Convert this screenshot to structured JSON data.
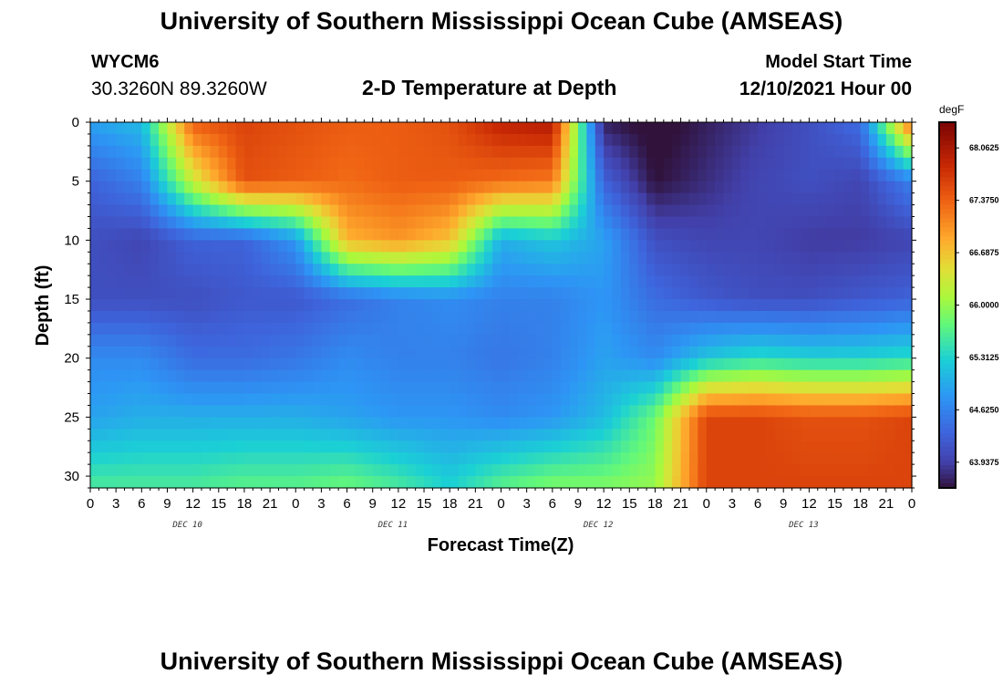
{
  "header": {
    "title": "University of Southern Mississippi Ocean Cube (AMSEAS)",
    "station": "WYCM6",
    "coords": "30.3260N  89.3260W",
    "subtitle": "2-D Temperature at Depth",
    "model_label": "Model Start Time",
    "model_time": "12/10/2021 Hour 00"
  },
  "footer": {
    "title": "University of Southern Mississippi Ocean Cube (AMSEAS)"
  },
  "chart_data": {
    "type": "heatmap",
    "title": "2-D Temperature at Depth",
    "xlabel": "Forecast Time(Z)",
    "ylabel": "Depth (ft)",
    "x_tick_labels": [
      "0",
      "3",
      "6",
      "9",
      "12",
      "15",
      "18",
      "21",
      "0",
      "3",
      "6",
      "9",
      "12",
      "15",
      "18",
      "21",
      "0",
      "3",
      "6",
      "9",
      "12",
      "15",
      "18",
      "21",
      "0",
      "3",
      "6",
      "9",
      "12",
      "15",
      "18",
      "21",
      "0"
    ],
    "date_labels": [
      {
        "label": "DEC 10",
        "hour": 12
      },
      {
        "label": "DEC 11",
        "hour": 36
      },
      {
        "label": "DEC 12",
        "hour": 60
      },
      {
        "label": "DEC 13",
        "hour": 84
      }
    ],
    "xlim_hours": [
      0,
      96
    ],
    "ylim_ft": [
      0,
      31
    ],
    "y_ticks": [
      0,
      5,
      10,
      15,
      20,
      25,
      30
    ],
    "colorbar": {
      "unit": "degF",
      "min": 63.6,
      "max": 68.4,
      "tick_values": [
        68.0625,
        67.375,
        66.6875,
        66.0,
        65.3125,
        64.625,
        63.9375
      ],
      "tick_labels": [
        "68.0625",
        "67.3750",
        "66.6875",
        "66.0000",
        "65.3125",
        "64.6250",
        "63.9375"
      ]
    },
    "hours": [
      0,
      6,
      12,
      18,
      24,
      30,
      36,
      42,
      48,
      54,
      60,
      66,
      72,
      78,
      84,
      90,
      96
    ],
    "depths_ft": [
      0,
      5,
      10,
      15,
      20,
      25,
      31
    ],
    "values": [
      [
        64.9,
        65.1,
        67.4,
        67.6,
        67.5,
        67.4,
        67.4,
        67.5,
        67.9,
        68.0,
        63.7,
        63.5,
        63.7,
        63.9,
        64.1,
        64.4,
        67.4
      ],
      [
        64.3,
        64.6,
        66.3,
        67.5,
        67.4,
        67.3,
        67.4,
        67.4,
        67.3,
        67.2,
        64.3,
        63.6,
        63.8,
        64.0,
        64.1,
        64.0,
        64.6
      ],
      [
        64.1,
        64.0,
        64.3,
        64.3,
        64.8,
        66.8,
        67.0,
        66.7,
        65.0,
        65.2,
        64.9,
        64.1,
        64.0,
        64.0,
        63.9,
        63.9,
        64.0
      ],
      [
        64.1,
        64.1,
        64.1,
        64.2,
        64.2,
        64.4,
        64.6,
        64.7,
        64.6,
        64.6,
        64.8,
        64.4,
        64.2,
        64.1,
        64.1,
        64.2,
        64.3
      ],
      [
        64.7,
        64.7,
        64.4,
        64.4,
        64.5,
        64.7,
        64.6,
        64.6,
        64.5,
        64.6,
        64.9,
        64.7,
        65.2,
        65.4,
        65.3,
        65.3,
        65.4
      ],
      [
        64.9,
        65.0,
        65.0,
        65.0,
        65.0,
        64.9,
        64.8,
        64.8,
        64.7,
        64.8,
        65.1,
        65.8,
        67.6,
        67.6,
        67.5,
        67.5,
        67.6
      ],
      [
        65.6,
        65.6,
        65.6,
        65.7,
        65.7,
        65.8,
        65.6,
        65.3,
        65.7,
        65.9,
        65.9,
        66.0,
        67.6,
        67.6,
        67.6,
        67.6,
        67.6
      ]
    ]
  }
}
